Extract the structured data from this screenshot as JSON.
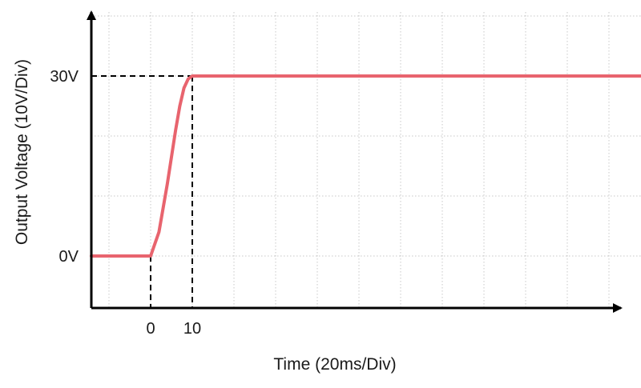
{
  "chart_data": {
    "type": "line",
    "title": "",
    "xlabel": "Time (20ms/Div)",
    "ylabel": "Output Voltage (10V/Div)",
    "x_unit": "ms",
    "y_unit": "V",
    "xlim": [
      -40,
      140
    ],
    "ylim": [
      -10,
      40
    ],
    "grid": true,
    "legend": "none",
    "line_color": "#e8646e",
    "x_tick_labels": [
      {
        "x": 0,
        "label": "0"
      },
      {
        "x": 10,
        "label": "10"
      }
    ],
    "y_tick_labels": [
      {
        "y": 0,
        "label": "0V"
      },
      {
        "y": 30,
        "label": "30V"
      }
    ],
    "reference_lines": [
      {
        "kind": "vertical",
        "x": 0,
        "from_y": 0,
        "style": "dashed"
      },
      {
        "kind": "vertical",
        "x": 10,
        "from_y": 30,
        "style": "dashed"
      },
      {
        "kind": "horizontal",
        "y": 30,
        "to_x": 10,
        "style": "dashed"
      }
    ],
    "series": [
      {
        "x": [
          -40,
          0,
          2,
          4,
          6,
          7,
          8,
          9,
          10,
          12,
          20,
          40,
          60,
          80,
          100,
          120,
          140
        ],
        "y": [
          0,
          0,
          4,
          12,
          21,
          25,
          28,
          29.5,
          30,
          30,
          30,
          30,
          30,
          30,
          30,
          30,
          30
        ]
      }
    ]
  }
}
